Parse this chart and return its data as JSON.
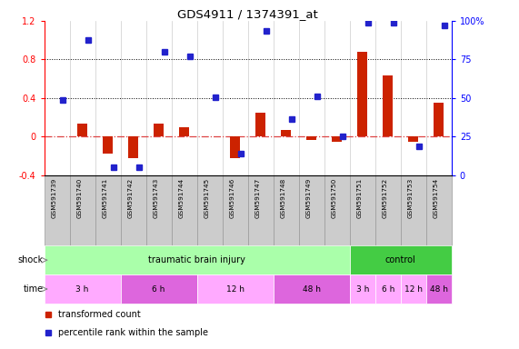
{
  "title": "GDS4911 / 1374391_at",
  "samples": [
    "GSM591739",
    "GSM591740",
    "GSM591741",
    "GSM591742",
    "GSM591743",
    "GSM591744",
    "GSM591745",
    "GSM591746",
    "GSM591747",
    "GSM591748",
    "GSM591749",
    "GSM591750",
    "GSM591751",
    "GSM591752",
    "GSM591753",
    "GSM591754"
  ],
  "red_bars": [
    0.0,
    0.13,
    -0.18,
    -0.22,
    0.13,
    0.1,
    0.0,
    -0.22,
    0.25,
    0.07,
    -0.04,
    -0.05,
    0.88,
    0.63,
    -0.05,
    0.35
  ],
  "blue_squares": [
    0.38,
    1.0,
    -0.32,
    -0.32,
    0.88,
    0.83,
    0.41,
    -0.18,
    1.1,
    0.18,
    0.42,
    0.0,
    1.18,
    1.18,
    -0.1,
    1.15
  ],
  "ylim": [
    -0.4,
    1.2
  ],
  "yticks_left": [
    -0.4,
    0.0,
    0.4,
    0.8,
    1.2
  ],
  "ytick_labels_left": [
    "-0.4",
    "0",
    "0.4",
    "0.8",
    "1.2"
  ],
  "right_tick_positions": [
    -0.4,
    0.0,
    0.4,
    0.8,
    1.2
  ],
  "ytick_labels_right": [
    "0",
    "25",
    "50",
    "75",
    "100%"
  ],
  "hlines": [
    0.8,
    0.4
  ],
  "red_bar_color": "#cc2200",
  "blue_square_color": "#2222cc",
  "zero_line_color": "#dd4444",
  "shock_groups": [
    {
      "label": "traumatic brain injury",
      "start": 0,
      "end": 12,
      "color": "#aaffaa"
    },
    {
      "label": "control",
      "start": 12,
      "end": 16,
      "color": "#44cc44"
    }
  ],
  "time_groups": [
    {
      "label": "3 h",
      "start": 0,
      "end": 3,
      "color": "#ffaaff"
    },
    {
      "label": "6 h",
      "start": 3,
      "end": 6,
      "color": "#dd66dd"
    },
    {
      "label": "12 h",
      "start": 6,
      "end": 9,
      "color": "#ffaaff"
    },
    {
      "label": "48 h",
      "start": 9,
      "end": 12,
      "color": "#dd66dd"
    },
    {
      "label": "3 h",
      "start": 12,
      "end": 13,
      "color": "#ffaaff"
    },
    {
      "label": "6 h",
      "start": 13,
      "end": 14,
      "color": "#ffaaff"
    },
    {
      "label": "12 h",
      "start": 14,
      "end": 15,
      "color": "#ffaaff"
    },
    {
      "label": "48 h",
      "start": 15,
      "end": 16,
      "color": "#dd66dd"
    }
  ],
  "legend_red": "transformed count",
  "legend_blue": "percentile rank within the sample",
  "label_shock": "shock",
  "label_time": "time",
  "bg_color": "#ffffff",
  "sample_box_color": "#cccccc",
  "sample_box_edge": "#999999"
}
